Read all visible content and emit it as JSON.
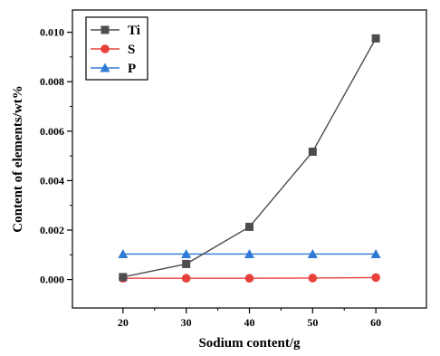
{
  "chart_data": {
    "type": "line",
    "title": "",
    "xlabel": "Sodium content/g",
    "ylabel": "Content of elements/wt%",
    "x": [
      20,
      30,
      40,
      50,
      60
    ],
    "xlim": [
      12,
      68
    ],
    "ylim": [
      -0.00115,
      0.0109
    ],
    "xticks": [
      20,
      30,
      40,
      50,
      60
    ],
    "yticks": [
      "0.000",
      "0.002",
      "0.004",
      "0.006",
      "0.008",
      "0.010"
    ],
    "grid": false,
    "legend_position": "top-left",
    "series": [
      {
        "name": "Ti",
        "color": "#4d4d4d",
        "marker": "square",
        "values": [
          0.0001,
          0.00063,
          0.00213,
          0.00517,
          0.00975
        ]
      },
      {
        "name": "S",
        "color": "#e8403a",
        "marker": "circle",
        "values": [
          5e-05,
          5e-05,
          5e-05,
          6e-05,
          8e-05
        ]
      },
      {
        "name": "P",
        "color": "#2e7bd6",
        "marker": "triangle",
        "values": [
          0.00103,
          0.00103,
          0.00103,
          0.00103,
          0.00103
        ]
      }
    ]
  }
}
